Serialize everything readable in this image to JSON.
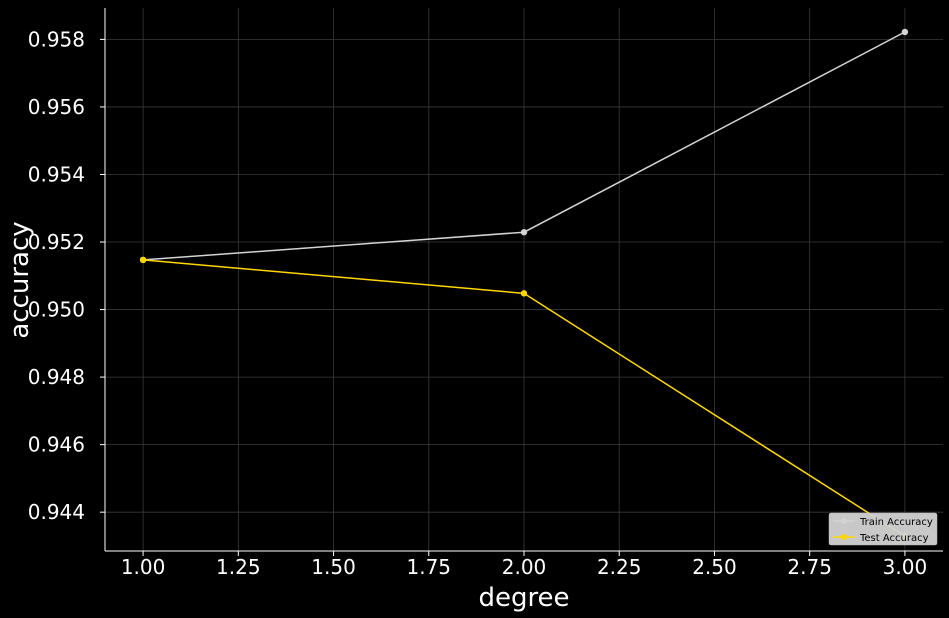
{
  "chart_data": {
    "type": "line",
    "title": "",
    "xlabel": "degree",
    "ylabel": "accuracy",
    "x": [
      1.0,
      2.0,
      3.0
    ],
    "series": [
      {
        "name": "Train Accuracy",
        "values": [
          0.95147,
          0.95229,
          0.95822
        ],
        "color": "#d3d3d3"
      },
      {
        "name": "Test Accuracy",
        "values": [
          0.95147,
          0.95048,
          0.94329
        ],
        "color": "#ffd700"
      }
    ],
    "xlim": [
      0.9,
      3.1
    ],
    "ylim": [
      0.94285,
      0.95893
    ],
    "xticks": [
      "1.00",
      "1.25",
      "1.50",
      "1.75",
      "2.00",
      "2.25",
      "2.50",
      "2.75",
      "3.00"
    ],
    "xtick_values": [
      1.0,
      1.25,
      1.5,
      1.75,
      2.0,
      2.25,
      2.5,
      2.75,
      3.0
    ],
    "yticks": [
      "0.944",
      "0.946",
      "0.948",
      "0.950",
      "0.952",
      "0.954",
      "0.956",
      "0.958"
    ],
    "ytick_values": [
      0.944,
      0.946,
      0.948,
      0.95,
      0.952,
      0.954,
      0.956,
      0.958
    ],
    "grid": true,
    "legend_position": "lower-right",
    "background_color": "#000000",
    "axis_color": "#ffffff",
    "grid_color": "#3a3a3a"
  }
}
